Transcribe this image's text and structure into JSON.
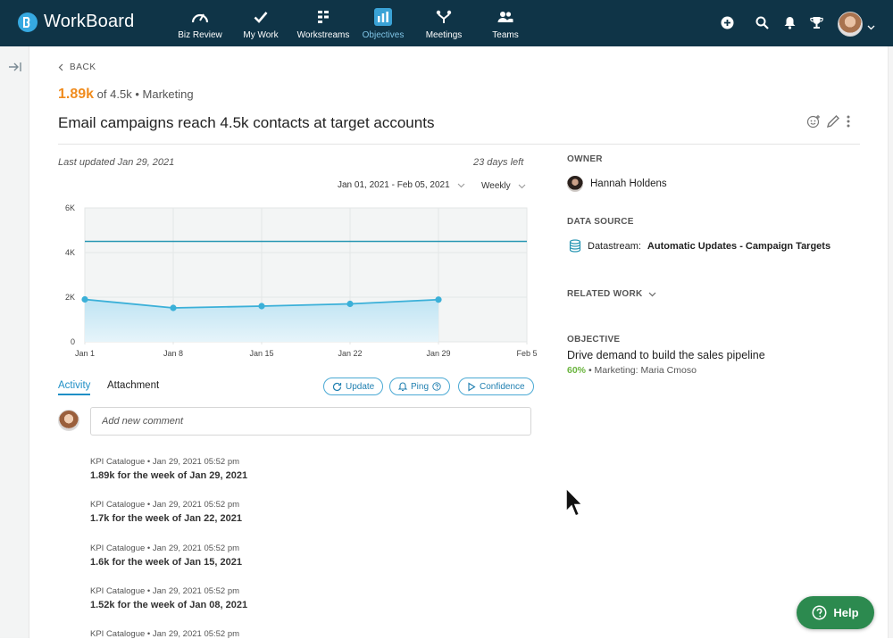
{
  "brand": {
    "name": "WorkBoard"
  },
  "nav": {
    "items": [
      {
        "label": "Biz Review",
        "icon": "gauge-icon"
      },
      {
        "label": "My Work",
        "icon": "checkmark-icon"
      },
      {
        "label": "Workstreams",
        "icon": "workstreams-icon"
      },
      {
        "label": "Objectives",
        "icon": "bar-chart-icon",
        "active": true
      },
      {
        "label": "Meetings",
        "icon": "meetings-icon"
      },
      {
        "label": "Teams",
        "icon": "teams-icon"
      }
    ]
  },
  "header": {
    "back_label": "BACK",
    "current_value": "1.89k",
    "progress_suffix": "of 4.5k",
    "separator": "•",
    "team": "Marketing",
    "title": "Email campaigns reach 4.5k contacts at target accounts"
  },
  "chart_meta": {
    "last_updated": "Last updated Jan 29, 2021",
    "days_left": "23 days left",
    "date_range": "Jan 01, 2021 - Feb 05, 2021",
    "frequency": "Weekly"
  },
  "chart_data": {
    "type": "area",
    "x": [
      "Jan 1",
      "Jan 8",
      "Jan 15",
      "Jan 22",
      "Jan 29"
    ],
    "x_ticks": [
      "Jan 1",
      "Jan 8",
      "Jan 15",
      "Jan 22",
      "Jan 29",
      "Feb 5"
    ],
    "series": [
      {
        "values": [
          1900,
          1520,
          1600,
          1700,
          1890
        ]
      }
    ],
    "target": 4500,
    "y_ticks": [
      0,
      2000,
      4000,
      6000
    ],
    "y_tick_labels": [
      "0",
      "2K",
      "4K",
      "6K"
    ],
    "ylim": [
      0,
      6000
    ],
    "grid": true,
    "colors": {
      "line": "#3bb0d8",
      "target": "#2a97b4",
      "fill_top": "#bfe4f3",
      "fill_bottom": "#e6f4fa",
      "plot_bg": "#f3f5f5",
      "grid": "#e3e6e6"
    }
  },
  "tabs": {
    "activity": "Activity",
    "attachment": "Attachment"
  },
  "actions": {
    "update": "Update",
    "ping": "Ping",
    "confidence": "Confidence"
  },
  "comment": {
    "placeholder": "Add new comment"
  },
  "feed": [
    {
      "meta": "KPI Catalogue • Jan 29, 2021 05:52 pm",
      "text": "1.89k for the week of Jan 29, 2021"
    },
    {
      "meta": "KPI Catalogue • Jan 29, 2021 05:52 pm",
      "text": "1.7k for the week of Jan 22, 2021"
    },
    {
      "meta": "KPI Catalogue • Jan 29, 2021 05:52 pm",
      "text": "1.6k for the week of Jan 15, 2021"
    },
    {
      "meta": "KPI Catalogue • Jan 29, 2021 05:52 pm",
      "text": "1.52k for the week of Jan 08, 2021"
    },
    {
      "meta": "KPI Catalogue • Jan 29, 2021 05:52 pm",
      "text": ""
    }
  ],
  "right": {
    "owner_label": "OWNER",
    "owner_name": "Hannah Holdens",
    "data_source_label": "DATA SOURCE",
    "data_source_prefix": "Datastream:",
    "data_source_name": "Automatic Updates - Campaign Targets",
    "related_label": "RELATED WORK",
    "objective_label": "OBJECTIVE",
    "objective_title": "Drive demand to build the sales pipeline",
    "objective_percent": "60%",
    "objective_separator": "•",
    "objective_owner": "Marketing: Maria Cmoso"
  },
  "help": {
    "label": "Help"
  }
}
